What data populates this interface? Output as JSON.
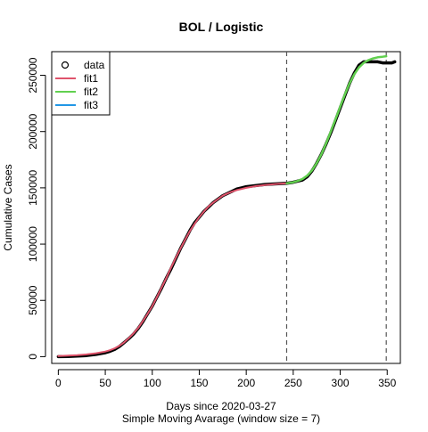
{
  "chart_data": {
    "type": "line",
    "title": "BOL / Logistic",
    "xlabel": "Days since 2020-03-27",
    "subtitle": "Simple Moving Avarage (window size = 7)",
    "ylabel": "Cumulative Cases",
    "xlim": [
      -7,
      364
    ],
    "ylim": [
      -6000,
      271000
    ],
    "x_ticks": [
      0,
      50,
      100,
      150,
      200,
      250,
      300,
      350
    ],
    "y_ticks": [
      0,
      50000,
      100000,
      150000,
      200000,
      250000
    ],
    "grid": false,
    "legend": {
      "position": "top-left",
      "entries": [
        {
          "label": "data",
          "symbol": "circle",
          "color": "#000000"
        },
        {
          "label": "fit1",
          "symbol": "line",
          "color": "#DF536B"
        },
        {
          "label": "fit2",
          "symbol": "line",
          "color": "#61D04F"
        },
        {
          "label": "fit3",
          "symbol": "line",
          "color": "#2297E6"
        }
      ]
    },
    "vlines": [
      {
        "x": 243,
        "style": "dashed",
        "color": "#555555"
      },
      {
        "x": 349,
        "style": "dashed",
        "color": "#555555"
      }
    ],
    "series": [
      {
        "name": "data",
        "color": "#000000",
        "x": [
          0,
          10,
          20,
          30,
          40,
          50,
          55,
          60,
          65,
          70,
          75,
          80,
          85,
          90,
          95,
          100,
          105,
          110,
          115,
          120,
          125,
          130,
          135,
          140,
          145,
          150,
          155,
          160,
          165,
          170,
          175,
          180,
          185,
          190,
          195,
          200,
          210,
          220,
          230,
          243,
          250,
          260,
          265,
          270,
          275,
          280,
          285,
          290,
          295,
          300,
          305,
          310,
          315,
          320,
          325,
          330,
          335,
          340,
          345,
          350,
          355,
          358
        ],
        "y": [
          0,
          200,
          500,
          1000,
          2000,
          3500,
          4800,
          6500,
          9000,
          12500,
          16000,
          20000,
          25000,
          31000,
          38000,
          45000,
          53000,
          61000,
          70000,
          78000,
          87000,
          96000,
          104000,
          112000,
          119000,
          124000,
          129000,
          133000,
          137000,
          140000,
          143000,
          145000,
          147000,
          149000,
          150000,
          151000,
          152000,
          153000,
          153500,
          154000,
          155000,
          157000,
          160000,
          165000,
          172000,
          180000,
          189000,
          199000,
          210000,
          221000,
          232000,
          243000,
          252000,
          259000,
          262000,
          262000,
          262000,
          262000,
          261000,
          261000,
          261000,
          262000
        ]
      },
      {
        "name": "fit1",
        "color": "#DF536B",
        "x": [
          0,
          10,
          20,
          30,
          40,
          50,
          55,
          60,
          65,
          70,
          75,
          80,
          85,
          90,
          95,
          100,
          105,
          110,
          115,
          120,
          125,
          130,
          135,
          140,
          145,
          150,
          155,
          160,
          165,
          170,
          175,
          180,
          185,
          190,
          195,
          200,
          210,
          220,
          230,
          243
        ],
        "y": [
          600,
          900,
          1300,
          2000,
          3000,
          4500,
          5700,
          7400,
          9700,
          12700,
          16400,
          20700,
          25500,
          31500,
          38000,
          45000,
          53000,
          61500,
          70000,
          79000,
          87700,
          96000,
          104000,
          111500,
          118000,
          124000,
          129000,
          133500,
          137000,
          140000,
          143000,
          145000,
          146700,
          148000,
          149000,
          150000,
          151500,
          152500,
          153200,
          154000
        ]
      },
      {
        "name": "fit2",
        "color": "#61D04F",
        "x": [
          243,
          250,
          255,
          260,
          265,
          270,
          275,
          280,
          285,
          290,
          295,
          300,
          305,
          310,
          315,
          320,
          325,
          330,
          335,
          340,
          345,
          349
        ],
        "y": [
          154000,
          155000,
          156200,
          158000,
          161000,
          165500,
          172000,
          180000,
          189500,
          200000,
          211000,
          222000,
          233000,
          243000,
          251000,
          257000,
          261000,
          263500,
          265000,
          266000,
          266500,
          267000
        ]
      },
      {
        "name": "fit3",
        "color": "#2297E6",
        "x": [],
        "y": []
      }
    ]
  }
}
